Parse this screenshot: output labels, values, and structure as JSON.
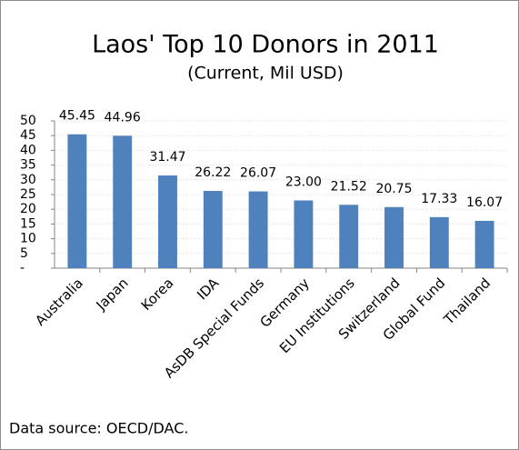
{
  "chart_data": {
    "type": "bar",
    "title": "Laos' Top 10 Donors in 2011",
    "subtitle": "(Current, Mil USD)",
    "categories": [
      "Australia",
      "Japan",
      "Korea",
      "IDA",
      "AsDB Special Funds",
      "Germany",
      "EU Institutions",
      "Switzerland",
      "Global Fund",
      "Thailand"
    ],
    "values": [
      45.45,
      44.96,
      31.47,
      26.22,
      26.07,
      23.0,
      21.52,
      20.75,
      17.33,
      16.07
    ],
    "value_labels": [
      "45.45",
      "44.96",
      "31.47",
      "26.22",
      "26.07",
      "23.00",
      "21.52",
      "20.75",
      "17.33",
      "16.07"
    ],
    "color": "#4f81bd",
    "ylim": [
      0,
      50
    ],
    "yticks": [
      {
        "value": 0,
        "label": "-"
      },
      5,
      10,
      15,
      20,
      25,
      30,
      35,
      40,
      45,
      50
    ],
    "grid": true,
    "source": "Data source: OECD/DAC."
  }
}
